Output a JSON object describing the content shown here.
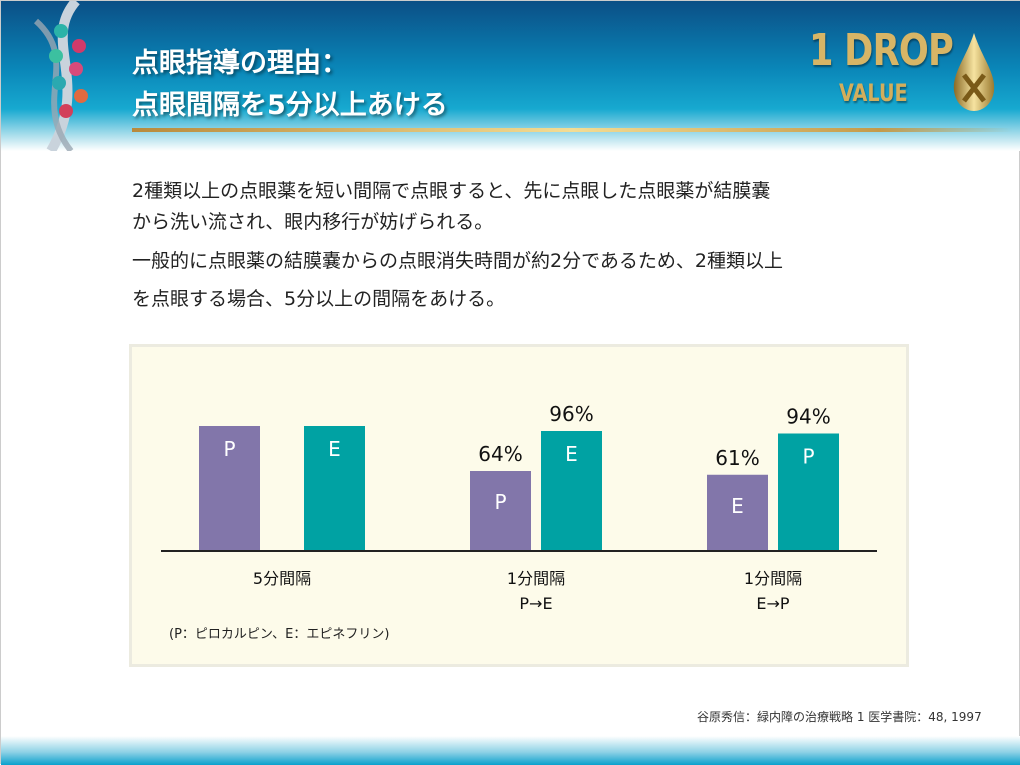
{
  "header": {
    "title_line1": "点眼指導の理由：",
    "title_line2": "点眼間隔を5分以上あける",
    "logo_text_1": "1 DROP",
    "logo_text_2": "VALUE"
  },
  "body": {
    "lines": [
      "2種類以上の点眼薬を短い間隔で点眼すると、先に点眼した点眼薬が結膜嚢",
      "から洗い流され、眼内移行が妨げられる。",
      "一般的に点眼薬の結膜嚢からの点眼消失時間が約2分であるため、2種類以上",
      "を点眼する場合、5分以上の間隔をあける。"
    ]
  },
  "chart_data": {
    "type": "bar",
    "categories": [
      "5分間隔",
      "1分間隔\nP→E",
      "1分間隔\nE→P"
    ],
    "category_lines": [
      [
        "5分間隔"
      ],
      [
        "1分間隔",
        "P→E"
      ],
      [
        "1分間隔",
        "E→P"
      ]
    ],
    "bars": [
      [
        {
          "label": "P",
          "value": 100,
          "data_label": "",
          "order": "first"
        },
        {
          "label": "E",
          "value": 100,
          "data_label": "",
          "order": "second"
        }
      ],
      [
        {
          "label": "P",
          "value": 64,
          "data_label": "64%",
          "order": "first"
        },
        {
          "label": "E",
          "value": 96,
          "data_label": "96%",
          "order": "second"
        }
      ],
      [
        {
          "label": "E",
          "value": 61,
          "data_label": "61%",
          "order": "first"
        },
        {
          "label": "P",
          "value": 94,
          "data_label": "94%",
          "order": "second"
        }
      ]
    ],
    "colors": {
      "first": "#8276aa",
      "second": "#00a2a3"
    },
    "ylim": [
      0,
      100
    ],
    "grid": false,
    "note": "(P：ピロカルピン、E：エピネフリン)"
  },
  "footer": {
    "citation": "谷原秀信：緑内障の治療戦略 1 医学書院：48, 1997"
  }
}
